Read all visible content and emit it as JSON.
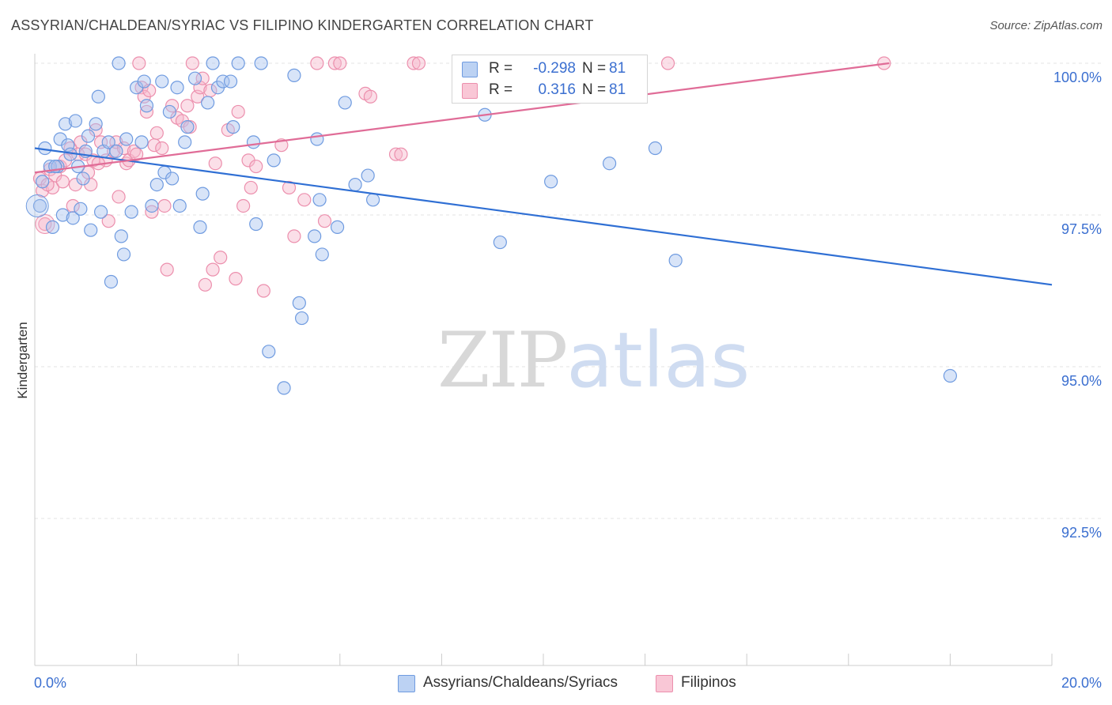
{
  "title": "ASSYRIAN/CHALDEAN/SYRIAC VS FILIPINO KINDERGARTEN CORRELATION CHART",
  "source": "Source: ZipAtlas.com",
  "watermark": {
    "part1": "ZIP",
    "part2": "atlas"
  },
  "legend": [
    {
      "r_label": "R =",
      "r_value": "-0.298",
      "n_label": "N =",
      "n_value": "81"
    },
    {
      "r_label": "R =",
      "r_value": "0.316",
      "n_label": "N =",
      "n_value": "81"
    }
  ],
  "colors": {
    "blue_fill": "#a9c4ef",
    "blue_stroke": "#6f9be0",
    "blue_line": "#2f6fd4",
    "pink_fill": "#f6b8cb",
    "pink_stroke": "#ec8fad",
    "pink_line": "#e06c97",
    "tick_label": "#3b6fd0",
    "grid": "#e3e3e3",
    "axis": "#cccccc"
  },
  "chart_data": {
    "type": "scatter",
    "title": "ASSYRIAN/CHALDEAN/SYRIAC VS FILIPINO KINDERGARTEN CORRELATION CHART",
    "xlabel": "",
    "ylabel": "Kindergarten",
    "xlim": [
      0,
      20
    ],
    "ylim": [
      90.5,
      100.25
    ],
    "x_tick_labels": [
      {
        "value": 0,
        "label": "0.0%"
      },
      {
        "value": 20,
        "label": "20.0%"
      }
    ],
    "y_tick_labels": [
      {
        "value": 100,
        "label": "100.0%"
      },
      {
        "value": 97.5,
        "label": "97.5%"
      },
      {
        "value": 95,
        "label": "95.0%"
      },
      {
        "value": 92.5,
        "label": "92.5%"
      }
    ],
    "grid": true,
    "series": [
      {
        "name": "Assyrians/Chaldeans/Syriacs",
        "r": -0.298,
        "n": 81,
        "trend": {
          "x": [
            0,
            20
          ],
          "y": [
            98.6,
            96.35
          ]
        },
        "points": [
          [
            0.1,
            97.65
          ],
          [
            0.15,
            98.05
          ],
          [
            0.2,
            98.6
          ],
          [
            0.3,
            98.3
          ],
          [
            0.35,
            97.3
          ],
          [
            0.45,
            98.3
          ],
          [
            0.5,
            98.75
          ],
          [
            0.55,
            97.5
          ],
          [
            0.6,
            99.0
          ],
          [
            0.65,
            98.65
          ],
          [
            0.7,
            98.5
          ],
          [
            0.75,
            97.45
          ],
          [
            0.8,
            99.05
          ],
          [
            0.85,
            98.3
          ],
          [
            0.9,
            97.6
          ],
          [
            0.95,
            98.1
          ],
          [
            1.05,
            98.8
          ],
          [
            1.1,
            97.25
          ],
          [
            1.2,
            99.0
          ],
          [
            1.25,
            99.45
          ],
          [
            1.3,
            97.55
          ],
          [
            1.35,
            98.55
          ],
          [
            1.45,
            98.7
          ],
          [
            1.5,
            96.4
          ],
          [
            1.6,
            98.55
          ],
          [
            1.65,
            100.0
          ],
          [
            1.7,
            97.15
          ],
          [
            1.75,
            96.85
          ],
          [
            1.8,
            98.75
          ],
          [
            1.9,
            97.55
          ],
          [
            2.0,
            99.6
          ],
          [
            2.1,
            98.7
          ],
          [
            2.15,
            99.7
          ],
          [
            2.2,
            99.3
          ],
          [
            2.3,
            97.65
          ],
          [
            2.4,
            98.0
          ],
          [
            2.5,
            99.7
          ],
          [
            2.55,
            98.2
          ],
          [
            2.65,
            99.2
          ],
          [
            2.7,
            98.1
          ],
          [
            2.8,
            99.6
          ],
          [
            2.85,
            97.65
          ],
          [
            3.0,
            98.95
          ],
          [
            3.15,
            99.75
          ],
          [
            3.25,
            97.3
          ],
          [
            3.3,
            97.85
          ],
          [
            3.4,
            99.35
          ],
          [
            3.5,
            100.0
          ],
          [
            3.6,
            99.6
          ],
          [
            3.7,
            99.7
          ],
          [
            3.85,
            99.7
          ],
          [
            3.9,
            98.95
          ],
          [
            4.0,
            100.0
          ],
          [
            4.3,
            98.7
          ],
          [
            4.35,
            97.35
          ],
          [
            4.45,
            100.0
          ],
          [
            4.6,
            95.25
          ],
          [
            4.7,
            98.4
          ],
          [
            4.9,
            94.65
          ],
          [
            5.1,
            99.8
          ],
          [
            5.2,
            96.05
          ],
          [
            5.25,
            95.8
          ],
          [
            5.5,
            97.15
          ],
          [
            5.6,
            97.75
          ],
          [
            5.65,
            96.85
          ],
          [
            5.95,
            97.3
          ],
          [
            6.1,
            99.35
          ],
          [
            6.3,
            98.0
          ],
          [
            6.55,
            98.15
          ],
          [
            6.65,
            97.75
          ],
          [
            8.85,
            99.15
          ],
          [
            9.15,
            97.05
          ],
          [
            10.15,
            98.05
          ],
          [
            11.3,
            98.35
          ],
          [
            12.2,
            98.6
          ],
          [
            12.6,
            96.75
          ],
          [
            18.0,
            94.85
          ],
          [
            1.0,
            98.55
          ],
          [
            2.95,
            98.7
          ],
          [
            0.4,
            98.3
          ],
          [
            5.55,
            98.75
          ]
        ]
      },
      {
        "name": "Filipinos",
        "r": 0.316,
        "n": 81,
        "trend": {
          "x": [
            0,
            16.8
          ],
          "y": [
            98.2,
            100.0
          ]
        },
        "points": [
          [
            0.1,
            98.1
          ],
          [
            0.15,
            97.9
          ],
          [
            0.2,
            97.35
          ],
          [
            0.3,
            98.25
          ],
          [
            0.35,
            97.95
          ],
          [
            0.4,
            98.15
          ],
          [
            0.5,
            98.3
          ],
          [
            0.6,
            98.4
          ],
          [
            0.7,
            98.6
          ],
          [
            0.75,
            97.65
          ],
          [
            0.8,
            98.0
          ],
          [
            0.85,
            98.5
          ],
          [
            0.9,
            98.7
          ],
          [
            1.0,
            98.5
          ],
          [
            1.05,
            98.2
          ],
          [
            1.1,
            98.0
          ],
          [
            1.15,
            98.4
          ],
          [
            1.2,
            98.9
          ],
          [
            1.3,
            98.7
          ],
          [
            1.4,
            98.4
          ],
          [
            1.45,
            97.4
          ],
          [
            1.55,
            98.55
          ],
          [
            1.6,
            98.7
          ],
          [
            1.65,
            97.8
          ],
          [
            1.75,
            98.6
          ],
          [
            1.8,
            98.35
          ],
          [
            1.85,
            98.4
          ],
          [
            1.95,
            98.55
          ],
          [
            2.05,
            100.0
          ],
          [
            2.1,
            99.6
          ],
          [
            2.15,
            99.45
          ],
          [
            2.2,
            99.2
          ],
          [
            2.25,
            99.55
          ],
          [
            2.3,
            97.55
          ],
          [
            2.35,
            98.65
          ],
          [
            2.4,
            98.85
          ],
          [
            2.5,
            98.6
          ],
          [
            2.55,
            97.65
          ],
          [
            2.6,
            96.6
          ],
          [
            2.7,
            99.3
          ],
          [
            2.8,
            99.1
          ],
          [
            2.9,
            99.05
          ],
          [
            3.0,
            99.3
          ],
          [
            3.05,
            98.95
          ],
          [
            3.1,
            100.0
          ],
          [
            3.2,
            99.45
          ],
          [
            3.25,
            99.6
          ],
          [
            3.3,
            99.75
          ],
          [
            3.35,
            96.35
          ],
          [
            3.45,
            99.55
          ],
          [
            3.5,
            96.6
          ],
          [
            3.55,
            98.35
          ],
          [
            3.65,
            96.8
          ],
          [
            3.8,
            98.9
          ],
          [
            3.95,
            96.45
          ],
          [
            4.1,
            97.65
          ],
          [
            4.2,
            98.4
          ],
          [
            4.25,
            97.95
          ],
          [
            4.35,
            98.3
          ],
          [
            4.5,
            96.25
          ],
          [
            4.85,
            98.65
          ],
          [
            5.0,
            97.95
          ],
          [
            5.1,
            97.15
          ],
          [
            5.3,
            97.75
          ],
          [
            5.55,
            100.0
          ],
          [
            5.9,
            100.0
          ],
          [
            6.0,
            100.0
          ],
          [
            6.5,
            99.5
          ],
          [
            6.6,
            99.45
          ],
          [
            7.1,
            98.5
          ],
          [
            7.2,
            98.5
          ],
          [
            7.45,
            100.0
          ],
          [
            7.55,
            100.0
          ],
          [
            12.45,
            100.0
          ],
          [
            16.7,
            100.0
          ],
          [
            0.25,
            98.0
          ],
          [
            0.55,
            98.05
          ],
          [
            1.25,
            98.35
          ],
          [
            2.0,
            98.5
          ],
          [
            4.0,
            99.2
          ],
          [
            5.7,
            97.4
          ]
        ]
      }
    ]
  }
}
